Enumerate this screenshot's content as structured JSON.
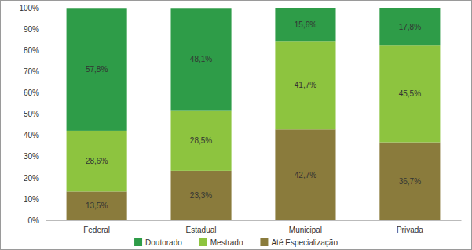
{
  "chart_data": {
    "type": "bar",
    "stacked": true,
    "data_labels": true,
    "legend": "bottom",
    "grid": false,
    "categories": [
      "Federal",
      "Estadual",
      "Municipal",
      "Privada"
    ],
    "series": [
      {
        "name": "Doutorado",
        "color": "#2e9c48",
        "values": [
          57.8,
          48.1,
          15.6,
          17.8
        ],
        "value_labels": [
          "57,8%",
          "48,1%",
          "15,6%",
          "17,8%"
        ]
      },
      {
        "name": "Mestrado",
        "color": "#8dc43f",
        "values": [
          28.6,
          28.5,
          41.7,
          45.5
        ],
        "value_labels": [
          "28,6%",
          "28,5%",
          "41,7%",
          "45,5%"
        ]
      },
      {
        "name": "Até Especialização",
        "color": "#8a7b3c",
        "values": [
          13.5,
          23.3,
          42.7,
          36.7
        ],
        "value_labels": [
          "13,5%",
          "23,3%",
          "42,7%",
          "36,7%"
        ]
      }
    ],
    "ylim": [
      0,
      100
    ],
    "yticks": [
      {
        "value": 0,
        "label": "0%"
      },
      {
        "value": 10,
        "label": "10%"
      },
      {
        "value": 20,
        "label": "20%"
      },
      {
        "value": 30,
        "label": "30%"
      },
      {
        "value": 40,
        "label": "40%"
      },
      {
        "value": 50,
        "label": "50%"
      },
      {
        "value": 60,
        "label": "60%"
      },
      {
        "value": 70,
        "label": "70%"
      },
      {
        "value": 80,
        "label": "80%"
      },
      {
        "value": 90,
        "label": "90%"
      },
      {
        "value": 100,
        "label": "100%"
      }
    ]
  }
}
